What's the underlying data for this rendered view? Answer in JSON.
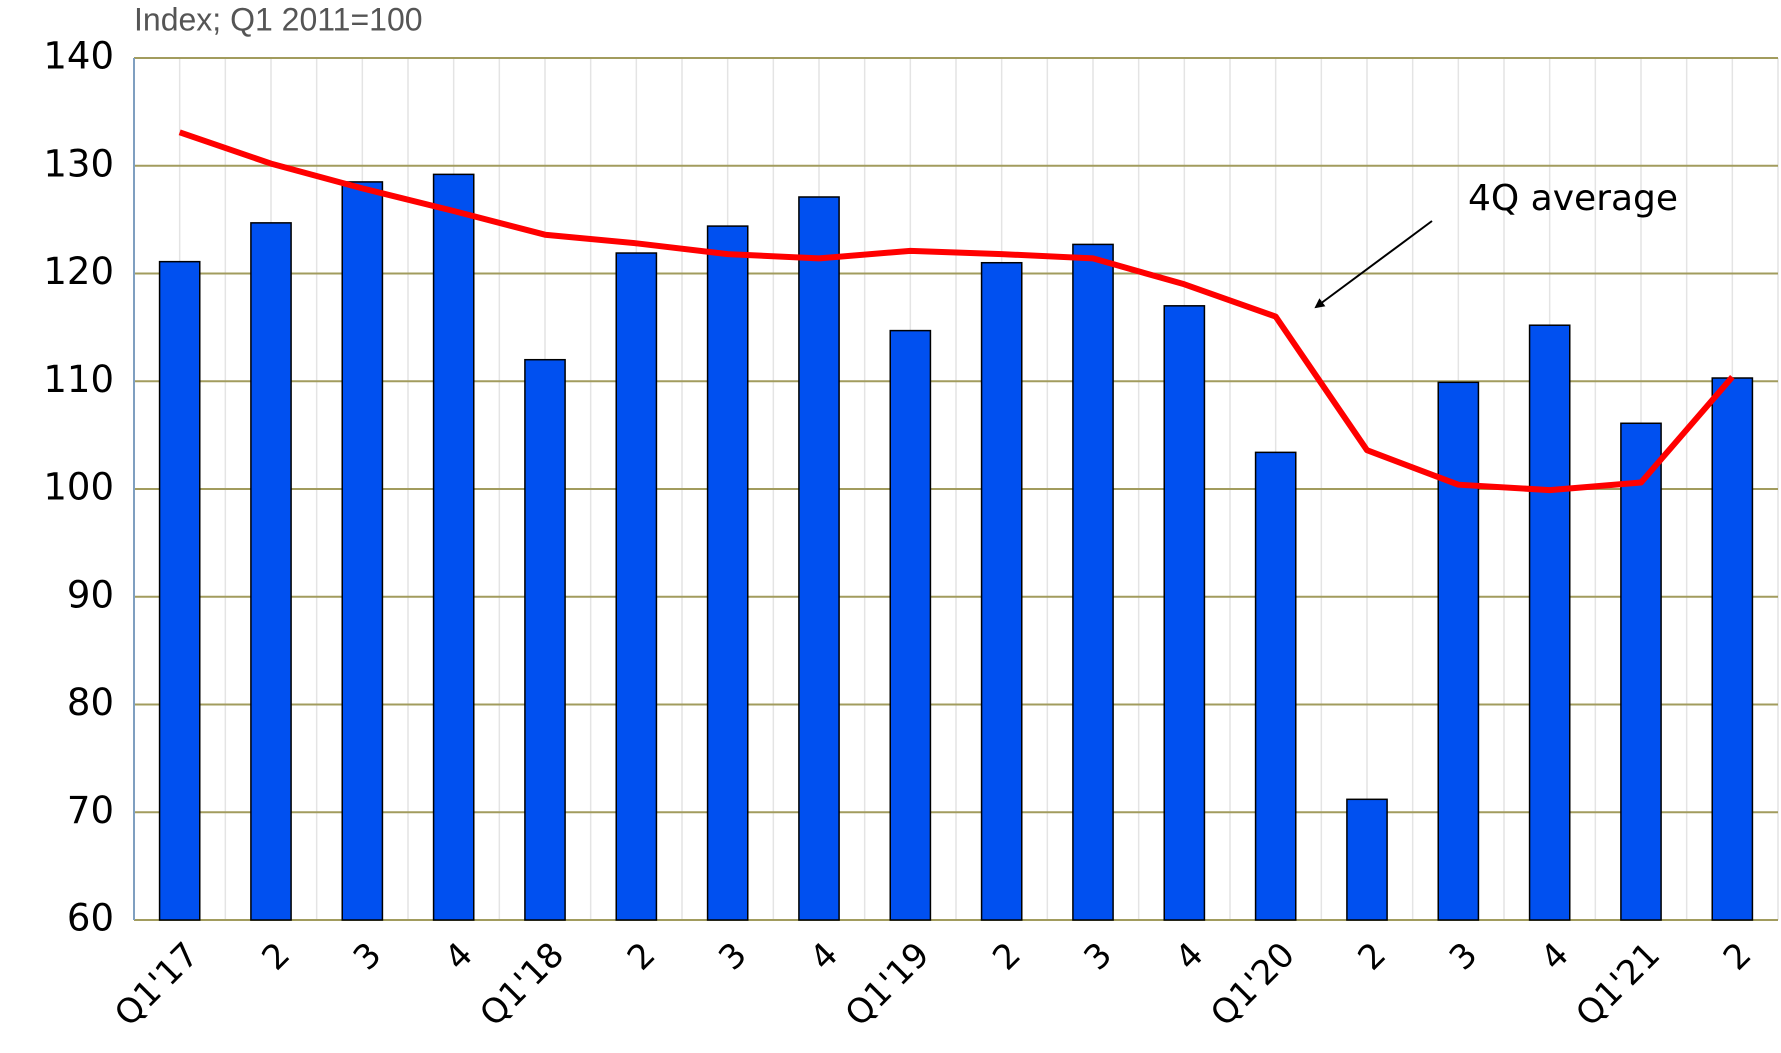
{
  "chart_data": {
    "type": "bar_line",
    "subtitle": "Index; Q1 2011=100",
    "annotation": "4Q average",
    "categories": [
      "Q1'17",
      "2",
      "3",
      "4",
      "Q1'18",
      "2",
      "3",
      "4",
      "Q1'19",
      "2",
      "3",
      "4",
      "Q1'20",
      "2",
      "3",
      "4",
      "Q1'21",
      "2"
    ],
    "series": [
      {
        "type": "bar",
        "color": "#0050f0",
        "values": [
          121.1,
          124.7,
          128.5,
          129.2,
          112,
          121.9,
          124.4,
          127.1,
          114.7,
          121,
          122.7,
          117,
          103.4,
          71.2,
          109.9,
          115.2,
          106.1,
          110.3
        ]
      },
      {
        "type": "line",
        "color": "#ff0000",
        "values": [
          133.1,
          130.2,
          127.9,
          125.8,
          123.6,
          122.8,
          121.8,
          121.4,
          122.1,
          121.8,
          121.4,
          119,
          116,
          103.6,
          100.4,
          99.9,
          100.6,
          110.4
        ]
      }
    ],
    "ylim": [
      60,
      140
    ],
    "yticks": [
      60,
      70,
      80,
      90,
      100,
      110,
      120,
      130,
      140
    ],
    "grid": true
  }
}
